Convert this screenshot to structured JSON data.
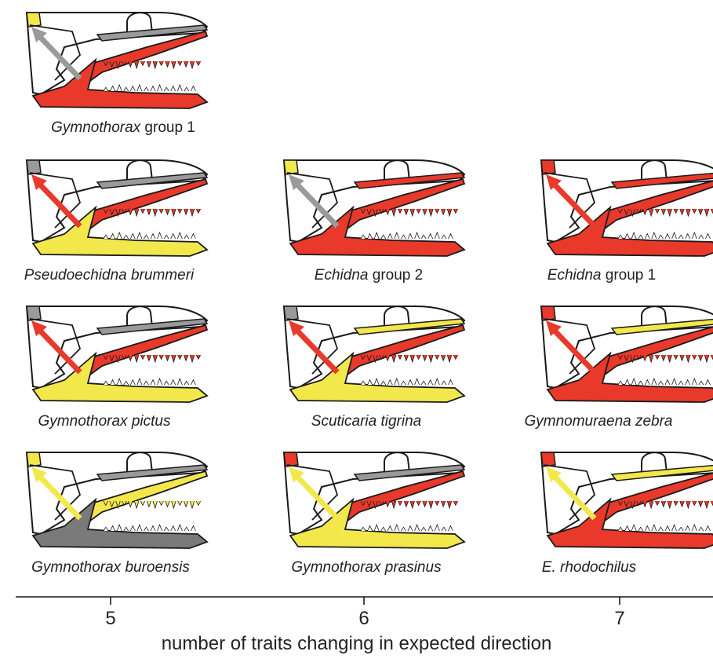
{
  "colors": {
    "red": "#e8392b",
    "yellow": "#f2e84c",
    "gray": "#9a9a9a",
    "dark_gray": "#7a7a7a",
    "outline": "#1a1a1a"
  },
  "panels": [
    {
      "id": "p1",
      "genus": "Gymnothorax",
      "rest": " group 1",
      "traits": 5,
      "colors": {
        "snout": "yellow",
        "arrow": "gray",
        "maxilla": "gray",
        "upper": "red",
        "lower": "red"
      }
    },
    {
      "id": "p2",
      "genus": "Pseudoechidna brummeri",
      "rest": "",
      "traits": 5,
      "colors": {
        "snout": "gray",
        "arrow": "red",
        "maxilla": "gray",
        "upper": "red",
        "lower": "yellow"
      }
    },
    {
      "id": "p3",
      "genus": "Echidna",
      "rest": " group 2",
      "traits": 6,
      "colors": {
        "snout": "yellow",
        "arrow": "gray",
        "maxilla": "red",
        "upper": "red",
        "lower": "red"
      }
    },
    {
      "id": "p4",
      "genus": "Echidna",
      "rest": " group 1",
      "traits": 7,
      "colors": {
        "snout": "red",
        "arrow": "red",
        "maxilla": "red",
        "upper": "red",
        "lower": "red"
      }
    },
    {
      "id": "p5",
      "genus": "Gymnothorax pictus",
      "rest": "",
      "traits": 5,
      "colors": {
        "snout": "gray",
        "arrow": "red",
        "maxilla": "gray",
        "upper": "red",
        "lower": "yellow"
      }
    },
    {
      "id": "p6",
      "genus": "Scuticaria tigrina",
      "rest": "",
      "traits": 6,
      "colors": {
        "snout": "gray",
        "arrow": "red",
        "maxilla": "yellow",
        "upper": "red",
        "lower": "yellow"
      }
    },
    {
      "id": "p7",
      "genus": "Gymnomuraena zebra",
      "rest": "",
      "traits": 7,
      "colors": {
        "snout": "red",
        "arrow": "red",
        "maxilla": "yellow",
        "upper": "red",
        "lower": "red"
      }
    },
    {
      "id": "p8",
      "genus": "Gymnothorax buroensis",
      "rest": "",
      "traits": 5,
      "colors": {
        "snout": "yellow",
        "arrow": "yellow",
        "maxilla": "gray",
        "upper": "yellow",
        "lower": "darkgray"
      }
    },
    {
      "id": "p9",
      "genus": "Gymnothorax prasinus",
      "rest": "",
      "traits": 6,
      "colors": {
        "snout": "red",
        "arrow": "yellow",
        "maxilla": "gray",
        "upper": "red",
        "lower": "yellow"
      }
    },
    {
      "id": "p10",
      "genus": "E. rhodochilus",
      "rest": "",
      "traits": 7,
      "colors": {
        "snout": "red",
        "arrow": "yellow",
        "maxilla": "yellow",
        "upper": "red",
        "lower": "red"
      }
    }
  ],
  "axis": {
    "ticks": [
      "5",
      "6",
      "7"
    ],
    "title": "number of traits changing in expected direction"
  }
}
